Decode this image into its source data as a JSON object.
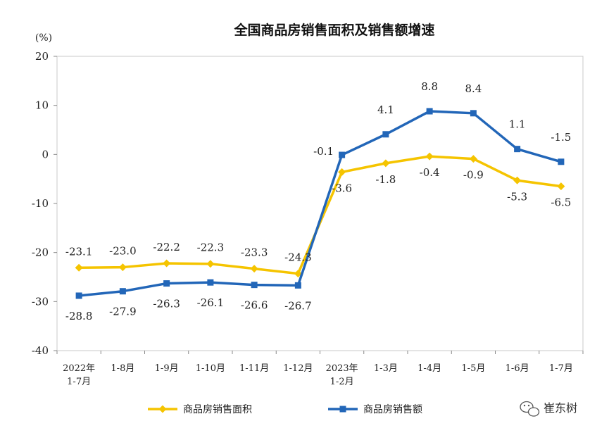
{
  "chart_data": {
    "type": "line",
    "title": "全国商品房销售面积及销售额增速",
    "unit_label": "(%)",
    "ylim": [
      -40,
      20
    ],
    "yticks": [
      20,
      10,
      0,
      -10,
      -20,
      -30,
      -40
    ],
    "grid": false,
    "legend_position": "bottom",
    "categories": [
      [
        "2022年",
        "1-7月"
      ],
      [
        "1-8月"
      ],
      [
        "1-9月"
      ],
      [
        "1-10月"
      ],
      [
        "1-11月"
      ],
      [
        "1-12月"
      ],
      [
        "2023年",
        "1-2月"
      ],
      [
        "1-3月"
      ],
      [
        "1-4月"
      ],
      [
        "1-5月"
      ],
      [
        "1-6月"
      ],
      [
        "1-7月"
      ]
    ],
    "series": [
      {
        "name": "商品房销售面积",
        "color": "#F5C400",
        "marker": "diamond",
        "values": [
          -23.1,
          -23.0,
          -22.2,
          -22.3,
          -23.3,
          -24.3,
          -3.6,
          -1.8,
          -0.4,
          -0.9,
          -5.3,
          -6.5
        ],
        "labels": [
          "-23.1",
          "-23.0",
          "-22.2",
          "-22.3",
          "-23.3",
          "-24.3",
          "-3.6",
          "-1.8",
          "-0.4",
          "-0.9",
          "-5.3",
          "-6.5"
        ]
      },
      {
        "name": "商品房销售额",
        "color": "#2266B8",
        "marker": "square",
        "values": [
          -28.8,
          -27.9,
          -26.3,
          -26.1,
          -26.6,
          -26.7,
          -0.1,
          4.1,
          8.8,
          8.4,
          1.1,
          -1.5
        ],
        "labels": [
          "-28.8",
          "-27.9",
          "-26.3",
          "-26.1",
          "-26.6",
          "-26.7",
          "-0.1",
          "4.1",
          "8.8",
          "8.4",
          "1.1",
          "-1.5"
        ]
      }
    ]
  },
  "watermark": {
    "icon": "wechat-icon",
    "text": "崔东树"
  }
}
